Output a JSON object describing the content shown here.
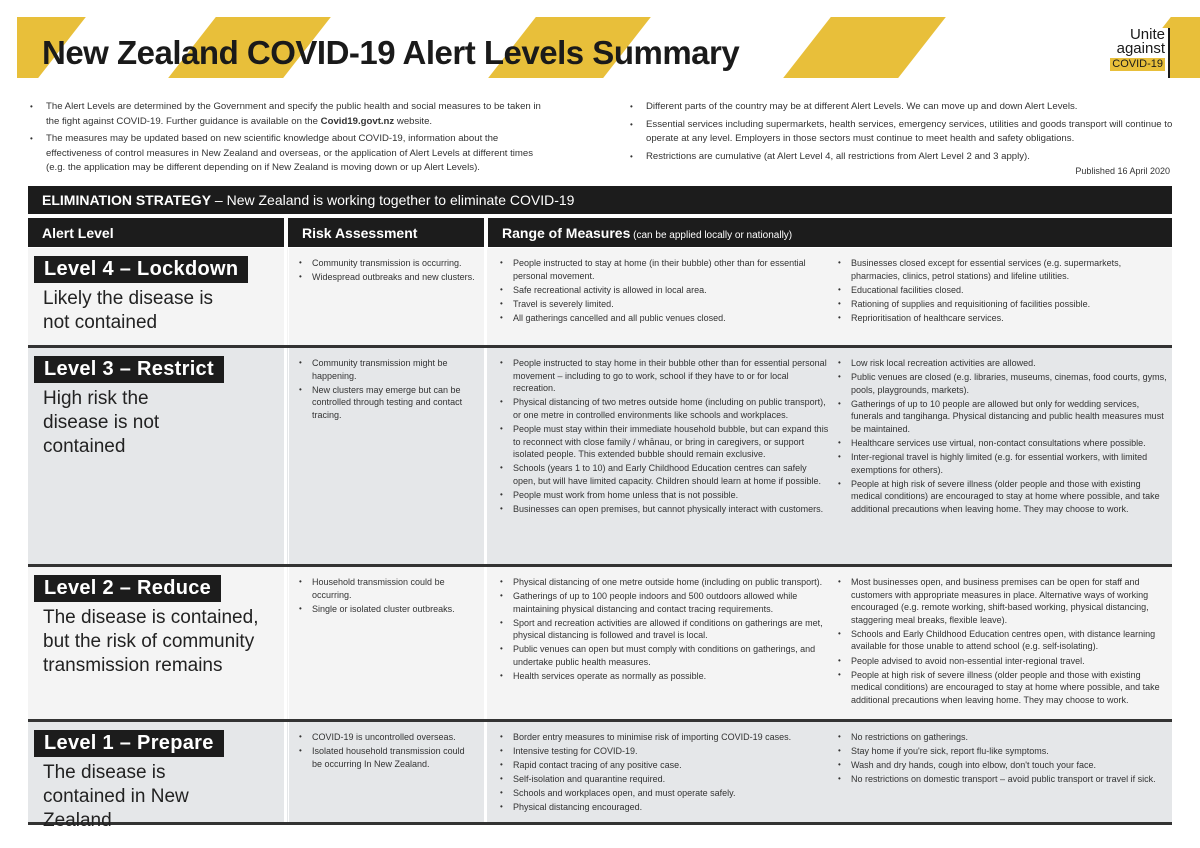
{
  "header": {
    "title_regular": "New Zealand COVID-19 ",
    "title_bold": "Alert Levels Summary",
    "logo": [
      "Unite",
      "against",
      "COVID-19"
    ],
    "accent_color": "#e8bf3a"
  },
  "intro_left": [
    "The Alert Levels are determined by the Government and specify the public health and social measures to be taken in the fight against COVID-19. Further guidance is available on the |Covid19.govt.nz| website.",
    "The measures may be updated based on new scientific knowledge about COVID-19, information about the effectiveness of control measures in New Zealand and overseas, or the application of Alert Levels at different times (e.g. the application may be different depending on if New Zealand is moving down or up Alert Levels)."
  ],
  "intro_left_parts": {
    "a": "The Alert Levels are determined by the Government and specify the public health and social measures to be taken in the fight against COVID-19. Further guidance is available on the ",
    "link": "Covid19.govt.nz",
    "b": " website."
  },
  "intro_right": [
    "Different parts of the country may be at different Alert Levels. We can move up and down Alert Levels.",
    "Essential services including supermarkets, health services, emergency services, utilities and goods transport will continue to operate at any level. Employers in those sectors must continue to meet health and safety obligations.",
    "Restrictions are cumulative (at Alert Level 4, all restrictions from Alert Level 2 and 3 apply)."
  ],
  "published": "Published 16 April 2020",
  "strategy": {
    "bold": "ELIMINATION STRATEGY",
    "rest": " – New Zealand is working together to eliminate COVID-19"
  },
  "columns": {
    "level": "Alert Level",
    "risk": "Risk Assessment",
    "measures": "Range of Measures",
    "measures_note": " (can be applied locally or nationally)"
  },
  "levels": [
    {
      "name": "Level 4 – Lockdown",
      "desc": "Likely the disease is not contained",
      "risk": [
        "Community transmission is occurring.",
        "Widespread outbreaks and new clusters."
      ],
      "m1": [
        "People instructed to stay at home (in their bubble) other than for essential personal movement.",
        "Safe recreational activity is allowed in local area.",
        "Travel is severely limited.",
        "All gatherings cancelled and all public venues closed."
      ],
      "m2": [
        "Businesses closed except for essential services (e.g. supermarkets, pharmacies, clinics, petrol stations) and lifeline utilities.",
        "Educational facilities closed.",
        "Rationing of supplies and requisitioning of facilities possible.",
        "Reprioritisation of healthcare services."
      ]
    },
    {
      "name": "Level 3 – Restrict",
      "desc": "High risk the disease is not contained",
      "risk": [
        "Community transmission might be happening.",
        "New clusters may emerge but can be controlled through testing and contact tracing."
      ],
      "m1": [
        "People instructed to stay home in their bubble other than for essential personal movement – including to go to work, school if they have to or for local recreation.",
        "Physical distancing of two metres outside home (including on public transport), or one metre in controlled environments like schools and workplaces.",
        "People must stay within their immediate household bubble, but can expand this to reconnect with close family / whānau, or bring in caregivers, or support isolated people. This extended bubble should remain exclusive.",
        "Schools (years 1 to 10) and Early Childhood Education centres can safely open, but will have limited capacity. Children should learn at home if possible.",
        "People must work from home unless that is not possible.",
        "Businesses can open premises, but cannot physically interact with customers."
      ],
      "m2": [
        "Low risk local recreation activities are allowed.",
        "Public venues are closed (e.g. libraries, museums, cinemas, food courts, gyms, pools, playgrounds, markets).",
        "Gatherings of up to 10 people are allowed but only for wedding services, funerals and tangihanga. Physical distancing and public health measures must be maintained.",
        "Healthcare services use virtual, non-contact consultations where possible.",
        "Inter-regional travel is highly limited (e.g. for essential workers, with limited exemptions for others).",
        "People at high risk of severe illness (older people and those with existing medical conditions) are encouraged to stay at home where possible, and take additional precautions when leaving home. They may choose to work."
      ]
    },
    {
      "name": "Level 2 – Reduce",
      "desc": "The disease is contained, but the risk of community transmission remains",
      "risk": [
        "Household transmission could be occurring.",
        "Single or isolated cluster outbreaks."
      ],
      "m1": [
        "Physical distancing of one metre outside home (including on public transport).",
        "Gatherings of up to 100 people indoors and 500 outdoors allowed while maintaining physical distancing and contact tracing requirements.",
        "Sport and recreation activities are allowed if conditions on gatherings are met, physical distancing is followed and travel is local.",
        "Public venues can open but must comply with conditions on gatherings, and undertake public health measures.",
        "Health services operate as normally as possible."
      ],
      "m2": [
        "Most businesses open, and business premises can be open for staff and customers with appropriate measures in place. Alternative ways of working encouraged (e.g. remote working, shift-based working, physical distancing, staggering meal breaks, flexible leave).",
        "Schools and Early Childhood Education centres open, with distance learning available for those unable to attend school (e.g. self-isolating).",
        "People advised to avoid non-essential inter-regional travel.",
        "People at high risk of severe illness (older people and those with existing medical conditions) are encouraged to stay at home where possible, and take additional precautions when leaving home. They may choose to work."
      ]
    },
    {
      "name": "Level 1 – Prepare",
      "desc": "The disease is contained in New Zealand",
      "risk": [
        "COVID-19 is uncontrolled overseas.",
        "Isolated household transmission could be occurring In New Zealand."
      ],
      "m1": [
        "Border entry measures to minimise risk of importing COVID-19 cases.",
        "Intensive testing for COVID-19.",
        "Rapid contact tracing of any positive case.",
        "Self-isolation and quarantine required.",
        "Schools and workplaces open, and must operate safely.",
        "Physical distancing encouraged."
      ],
      "m2": [
        "No restrictions on gatherings.",
        "Stay home if you're sick, report flu-like symptoms.",
        "Wash and dry hands, cough into elbow, don't touch your face.",
        "No restrictions on domestic transport – avoid public transport or travel if sick."
      ]
    }
  ]
}
